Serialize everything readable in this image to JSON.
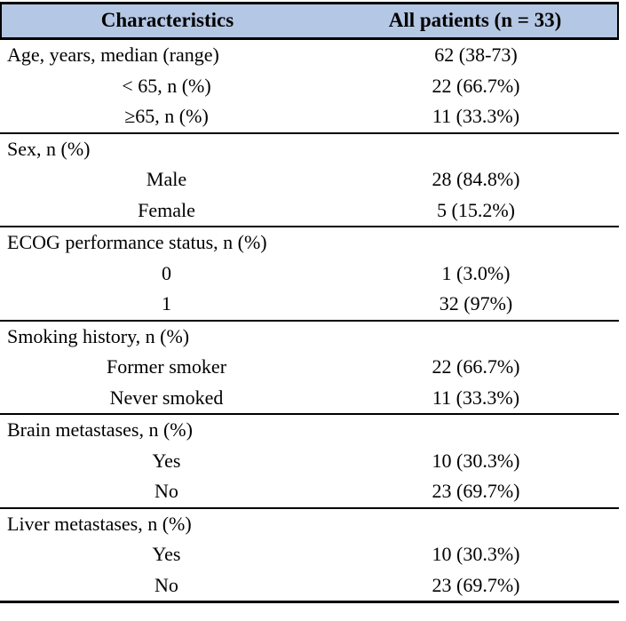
{
  "table": {
    "colors": {
      "header_bg": "#b4c7e4",
      "border": "#000000",
      "text": "#000000",
      "background": "#ffffff"
    },
    "header": {
      "col1": "Characteristics",
      "col2": "All patients (n = 33)"
    },
    "sections": [
      {
        "rows": [
          {
            "label": "Age, years, median (range)",
            "value": "62 (38-73)",
            "indent": "category"
          },
          {
            "label": "< 65, n (%)",
            "value": "22 (66.7%)",
            "indent": "sub"
          },
          {
            "label": "≥65, n (%)",
            "value": "11 (33.3%)",
            "indent": "sub"
          }
        ]
      },
      {
        "rows": [
          {
            "label": "Sex, n (%)",
            "value": "",
            "indent": "category"
          },
          {
            "label": "Male",
            "value": "28 (84.8%)",
            "indent": "sub"
          },
          {
            "label": "Female",
            "value": "5 (15.2%)",
            "indent": "sub"
          }
        ]
      },
      {
        "rows": [
          {
            "label": "ECOG performance status, n (%)",
            "value": "",
            "indent": "category"
          },
          {
            "label": "0",
            "value": "1 (3.0%)",
            "indent": "sub"
          },
          {
            "label": "1",
            "value": "32 (97%)",
            "indent": "sub"
          }
        ]
      },
      {
        "rows": [
          {
            "label": "Smoking history, n (%)",
            "value": "",
            "indent": "category"
          },
          {
            "label": "Former smoker",
            "value": "22 (66.7%)",
            "indent": "sub"
          },
          {
            "label": "Never smoked",
            "value": "11 (33.3%)",
            "indent": "sub"
          }
        ]
      },
      {
        "rows": [
          {
            "label": "Brain metastases, n (%)",
            "value": "",
            "indent": "category"
          },
          {
            "label": "Yes",
            "value": "10 (30.3%)",
            "indent": "sub"
          },
          {
            "label": "No",
            "value": "23 (69.7%)",
            "indent": "sub"
          }
        ]
      },
      {
        "rows": [
          {
            "label": "Liver metastases, n (%)",
            "value": "",
            "indent": "category"
          },
          {
            "label": "Yes",
            "value": "10 (30.3%)",
            "indent": "sub"
          },
          {
            "label": "No",
            "value": "23 (69.7%)",
            "indent": "sub"
          }
        ]
      }
    ]
  },
  "chart_data": {
    "type": "table",
    "columns": [
      "Characteristics",
      "All patients (n = 33)"
    ],
    "rows": [
      [
        "Age, years, median (range)",
        "62 (38-73)"
      ],
      [
        "< 65, n (%)",
        "22 (66.7%)"
      ],
      [
        "≥65, n (%)",
        "11 (33.3%)"
      ],
      [
        "Sex, n (%)",
        ""
      ],
      [
        "Male",
        "28 (84.8%)"
      ],
      [
        "Female",
        "5 (15.2%)"
      ],
      [
        "ECOG performance status, n (%)",
        ""
      ],
      [
        "0",
        "1 (3.0%)"
      ],
      [
        "1",
        "32 (97%)"
      ],
      [
        "Smoking history, n (%)",
        ""
      ],
      [
        "Former smoker",
        "22 (66.7%)"
      ],
      [
        "Never smoked",
        "11 (33.3%)"
      ],
      [
        "Brain metastases, n (%)",
        ""
      ],
      [
        "Yes",
        "10 (30.3%)"
      ],
      [
        "No",
        "23 (69.7%)"
      ],
      [
        "Liver metastases, n (%)",
        ""
      ],
      [
        "Yes",
        "10 (30.3%)"
      ],
      [
        "No",
        "23 (69.7%)"
      ]
    ]
  }
}
